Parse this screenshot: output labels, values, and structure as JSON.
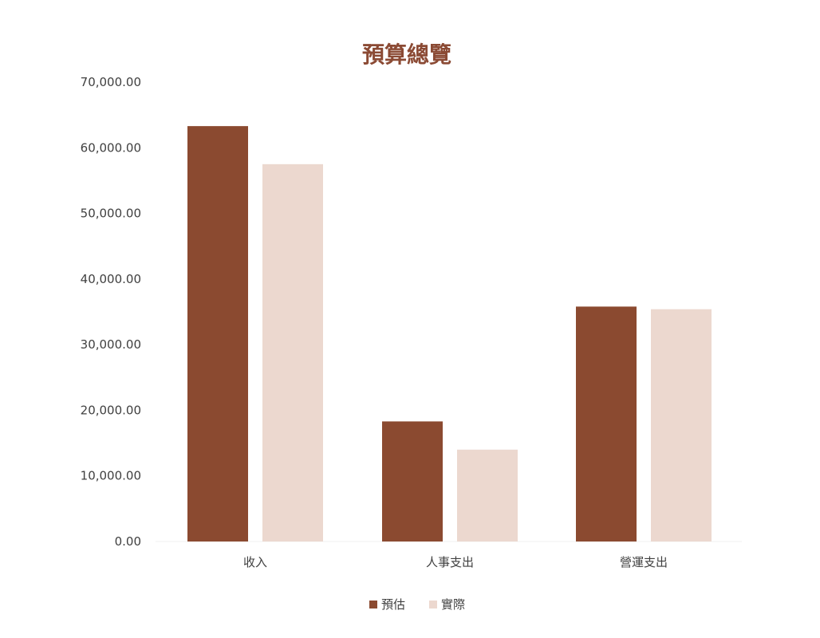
{
  "chart_data": {
    "type": "bar",
    "title": "預算總覽",
    "categories": [
      "收入",
      "人事支出",
      "營運支出"
    ],
    "series": [
      {
        "name": "預估",
        "color": "#8b4a30",
        "values": [
          63300,
          18300,
          35800
        ]
      },
      {
        "name": "實際",
        "color": "#ecd8cf",
        "values": [
          57500,
          14000,
          35400
        ]
      }
    ],
    "ylim": [
      0,
      70000
    ],
    "yticks": [
      0,
      10000,
      20000,
      30000,
      40000,
      50000,
      60000,
      70000
    ],
    "ytick_labels": [
      "0.00",
      "10,000.00",
      "20,000.00",
      "30,000.00",
      "40,000.00",
      "50,000.00",
      "60,000.00",
      "70,000.00"
    ],
    "grid": false,
    "legend_position": "bottom"
  }
}
